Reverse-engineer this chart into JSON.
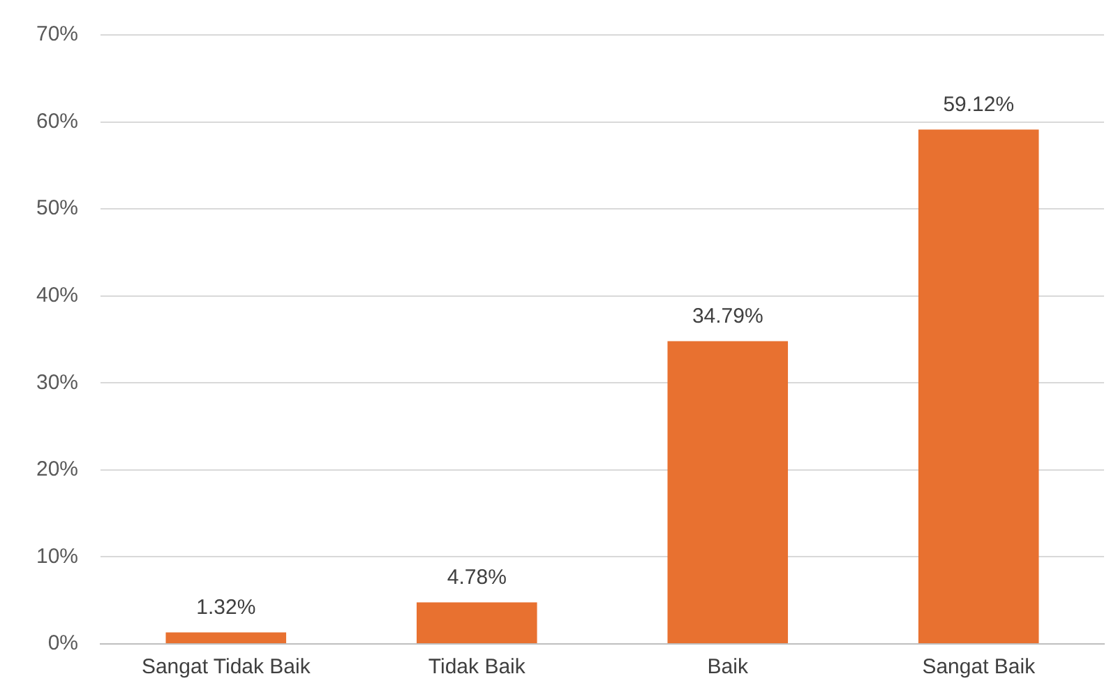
{
  "chart_data": {
    "type": "bar",
    "categories": [
      "Sangat Tidak Baik",
      "Tidak Baik",
      "Baik",
      "Sangat Baik"
    ],
    "values": [
      1.32,
      4.78,
      34.79,
      59.12
    ],
    "value_labels": [
      "1.32%",
      "4.78%",
      "34.79%",
      "59.12%"
    ],
    "color": "#e87130",
    "ylim": [
      0,
      70
    ],
    "yticks": [
      {
        "value": 0,
        "label": "0%"
      },
      {
        "value": 10,
        "label": "10%"
      },
      {
        "value": 20,
        "label": "20%"
      },
      {
        "value": 30,
        "label": "30%"
      },
      {
        "value": 40,
        "label": "40%"
      },
      {
        "value": 50,
        "label": "50%"
      },
      {
        "value": 60,
        "label": "60%"
      },
      {
        "value": 70,
        "label": "70%"
      }
    ],
    "grid": "y",
    "legend": false
  }
}
